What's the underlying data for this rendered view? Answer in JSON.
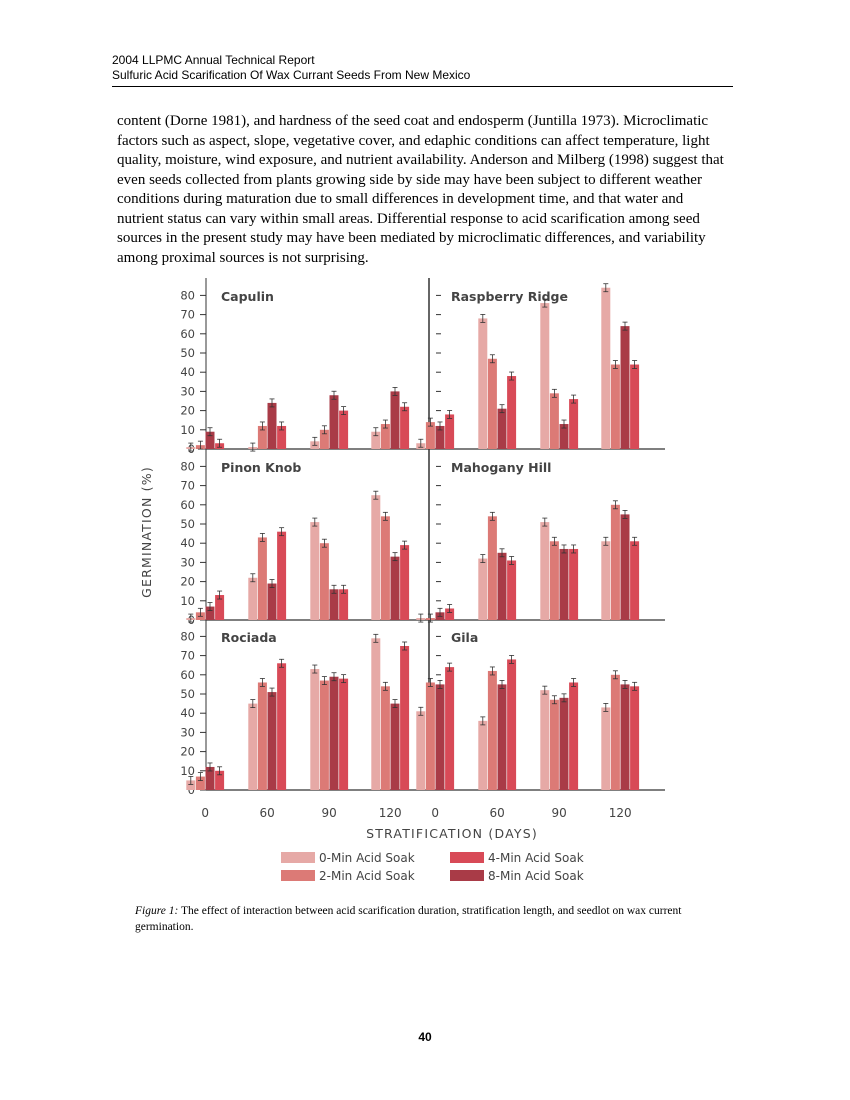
{
  "header": {
    "line1": "2004 LLPMC Annual Technical Report",
    "line2": "Sulfuric Acid Scarification Of  Wax Currant Seeds From New Mexico"
  },
  "body_text": "content (Dorne 1981), and hardness of the seed coat and endosperm (Juntilla 1973). Microclimatic factors such as aspect, slope, vegetative cover, and edaphic conditions can affect temperature, light quality, moisture, wind exposure, and nutrient availability. Anderson and Milberg (1998) suggest that even seeds collected from plants growing side by side may have been subject to different weather conditions during maturation due to small differences in development time, and that water and nutrient status can vary within small areas. Differential response to acid scarification among seed sources in the present study may have been mediated by microclimatic differences, and variability among proximal sources is not surprising.",
  "caption": {
    "label": "Figure 1:",
    "text": " The effect of interaction between acid scarification duration, stratification length, and seedlot on wax current germination."
  },
  "page_number": "40",
  "chart_data": {
    "type": "bar",
    "ylabel": "GERMINATION (%)",
    "xlabel": "STRATIFICATION (DAYS)",
    "categories": [
      "0",
      "60",
      "90",
      "120"
    ],
    "ylim": [
      0,
      85
    ],
    "yticks": [
      0,
      10,
      20,
      30,
      40,
      50,
      60,
      70,
      80
    ],
    "series_names": [
      "0-Min Acid Soak",
      "2-Min Acid Soak",
      "4-Min Acid Soak",
      "8-Min Acid Soak"
    ],
    "series_colors": [
      "#E6A9A6",
      "#DC7A76",
      "#D84A57",
      "#A93B47"
    ],
    "series_order": [
      0,
      1,
      3,
      2
    ],
    "legend_order": [
      0,
      2,
      1,
      3
    ],
    "panels": [
      {
        "title": "Capulin",
        "values": [
          [
            1,
            2,
            3,
            9
          ],
          [
            1,
            12,
            12,
            24
          ],
          [
            4,
            10,
            20,
            28
          ],
          [
            9,
            13,
            22,
            30
          ]
        ]
      },
      {
        "title": "Raspberry Ridge",
        "values": [
          [
            3,
            14,
            18,
            12
          ],
          [
            68,
            47,
            38,
            21
          ],
          [
            76,
            29,
            26,
            13
          ],
          [
            84,
            44,
            44,
            64
          ]
        ]
      },
      {
        "title": "Pinon Knob",
        "values": [
          [
            1,
            4,
            13,
            7
          ],
          [
            22,
            43,
            46,
            19
          ],
          [
            51,
            40,
            16,
            16
          ],
          [
            65,
            54,
            39,
            33
          ]
        ]
      },
      {
        "title": "Mahogany Hill",
        "values": [
          [
            1,
            1,
            6,
            4
          ],
          [
            32,
            54,
            31,
            35
          ],
          [
            51,
            41,
            37,
            37
          ],
          [
            41,
            60,
            41,
            55
          ]
        ]
      },
      {
        "title": "Rociada",
        "values": [
          [
            5,
            7,
            10,
            12
          ],
          [
            45,
            56,
            66,
            51
          ],
          [
            63,
            57,
            58,
            59
          ],
          [
            79,
            54,
            75,
            45
          ]
        ]
      },
      {
        "title": "Gila",
        "values": [
          [
            41,
            56,
            64,
            55
          ],
          [
            36,
            62,
            68,
            55
          ],
          [
            52,
            47,
            56,
            48
          ],
          [
            43,
            60,
            54,
            55
          ]
        ]
      }
    ]
  }
}
